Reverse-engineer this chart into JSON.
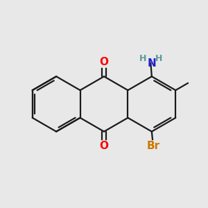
{
  "background_color": "#e8e8e8",
  "bond_color": "#1a1a1a",
  "bond_width": 1.6,
  "atom_colors": {
    "O": "#ff0000",
    "N": "#2222cc",
    "H": "#5a9a9a",
    "Br": "#cc7700",
    "C": "#1a1a1a"
  },
  "font_size": 11,
  "font_size_small": 9
}
